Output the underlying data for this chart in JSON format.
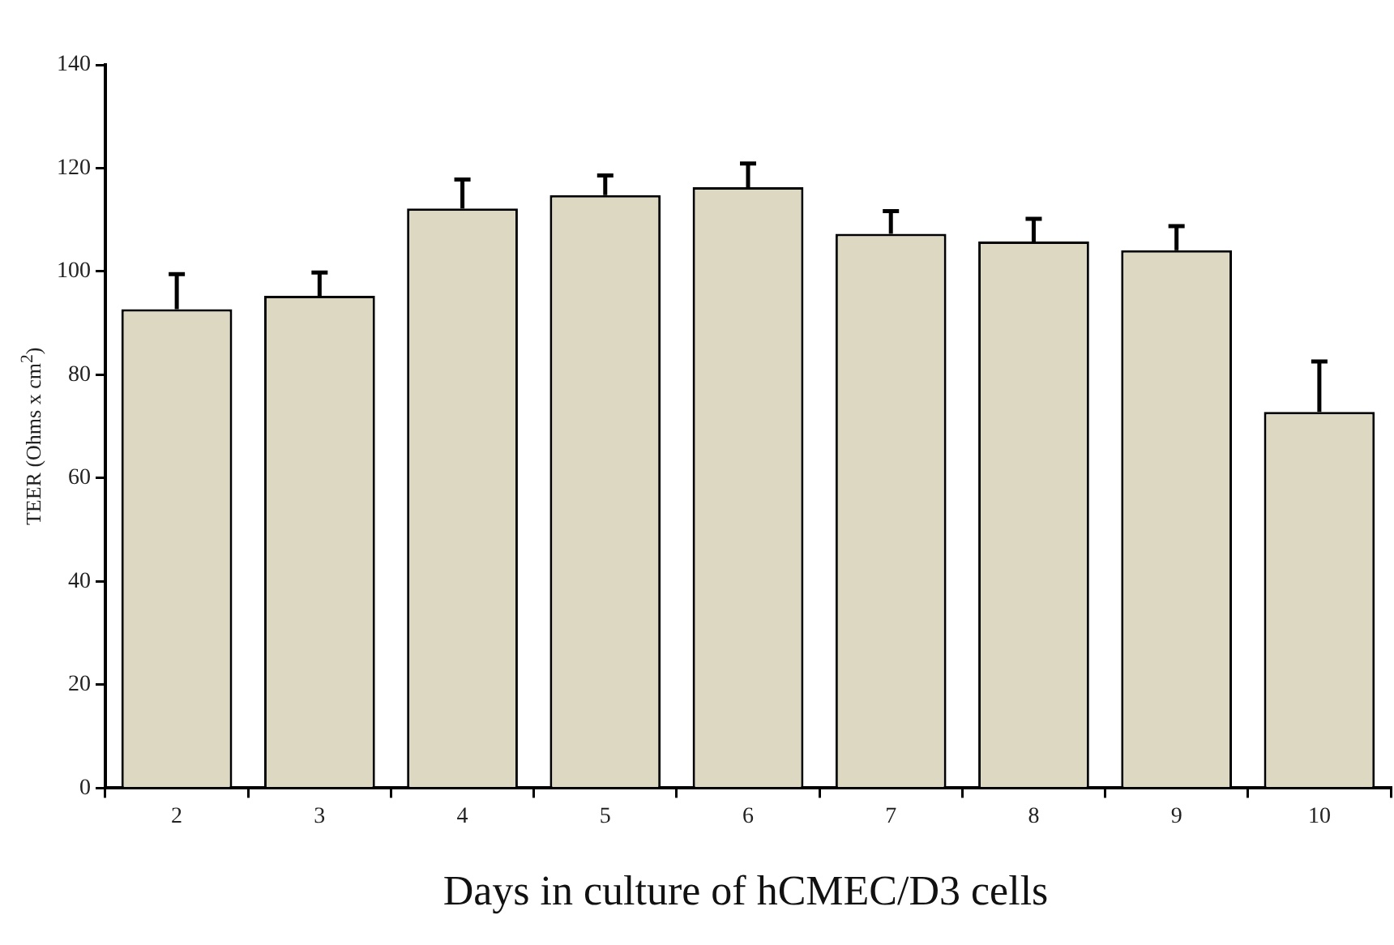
{
  "chart_data": {
    "type": "bar",
    "xlabel": "Days in culture of hCMEC/D3 cells",
    "ylabel": "TEER (Ohms x cm$^{2}$)",
    "categories": [
      "2",
      "3",
      "4",
      "5",
      "6",
      "7",
      "8",
      "9",
      "10"
    ],
    "values": [
      92.7,
      95.3,
      112.2,
      114.8,
      116.3,
      107.3,
      105.8,
      104.1,
      72.8
    ],
    "errors": [
      [
        92.7,
        99.5
      ],
      [
        95.3,
        99.8
      ],
      [
        112.2,
        117.8
      ],
      [
        114.8,
        118.6
      ],
      [
        116.3,
        120.9
      ],
      [
        107.3,
        111.7
      ],
      [
        105.8,
        110.2
      ],
      [
        104.1,
        108.8
      ],
      [
        72.8,
        82.6
      ]
    ],
    "color": "#ddd8c2",
    "ylim": [
      0,
      140
    ],
    "yticks": [
      0,
      20,
      40,
      60,
      80,
      100,
      120,
      140
    ],
    "grid": false,
    "legend": false
  }
}
